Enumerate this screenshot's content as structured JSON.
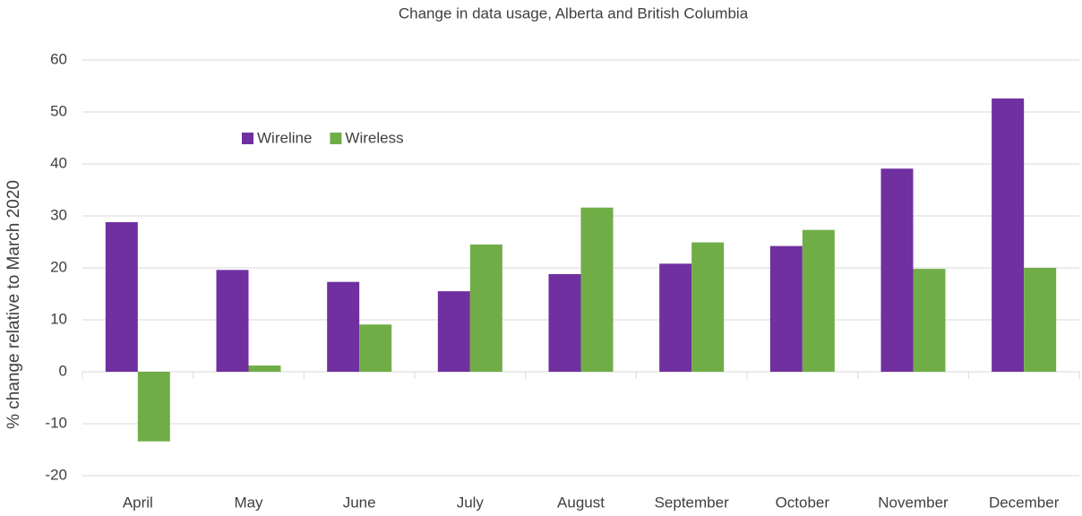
{
  "chart_data": {
    "type": "bar",
    "title": "Change in data usage, Alberta and British Columbia",
    "y_label": "% change relative to March 2020",
    "categories": [
      "April",
      "May",
      "June",
      "July",
      "August",
      "September",
      "October",
      "November",
      "December"
    ],
    "series": [
      {
        "name": "Wireline",
        "color": "#7030a0",
        "values": [
          28.8,
          19.6,
          17.3,
          15.5,
          18.8,
          20.8,
          24.2,
          39.1,
          52.6
        ]
      },
      {
        "name": "Wireless",
        "color": "#70ad47",
        "values": [
          -13.4,
          1.2,
          9.1,
          24.5,
          31.6,
          24.9,
          27.3,
          19.8,
          20.0
        ]
      }
    ],
    "ylim": [
      -20,
      60
    ],
    "yticks": [
      -20,
      -10,
      0,
      10,
      20,
      30,
      40,
      50,
      60
    ],
    "grid": true
  }
}
